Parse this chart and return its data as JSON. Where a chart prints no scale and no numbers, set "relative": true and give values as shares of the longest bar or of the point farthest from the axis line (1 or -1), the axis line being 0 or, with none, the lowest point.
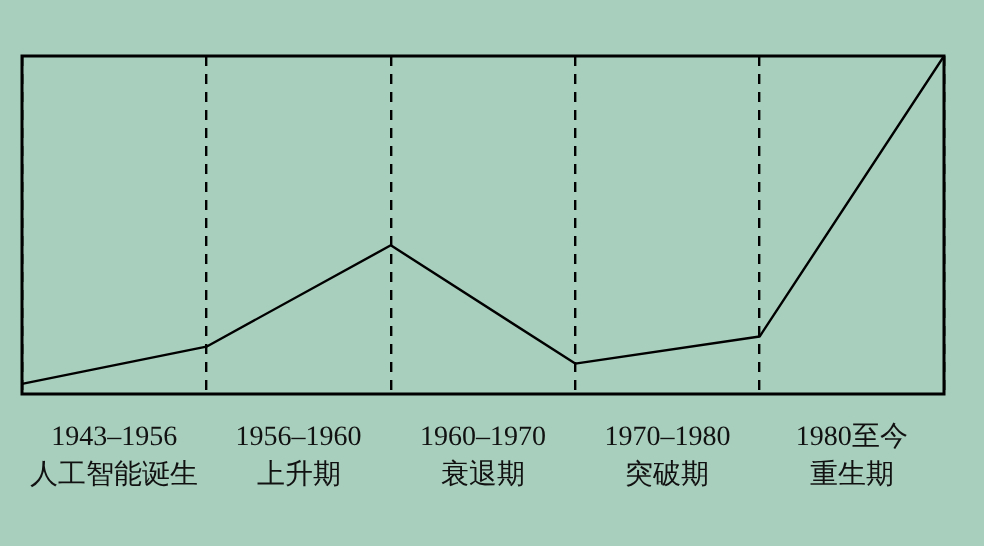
{
  "chart_data": {
    "type": "line",
    "relative": true,
    "tick_labels": false,
    "grid": "x",
    "legend": false,
    "marker": "none",
    "line_style": "solid",
    "categories": [
      null,
      null,
      null,
      null,
      null,
      null
    ],
    "series": [
      {
        "color": "#000000",
        "values": [
          0.03,
          0.14,
          0.44,
          0.09,
          0.17,
          1
        ]
      }
    ],
    "annotations": [
      "1943–1956",
      "人工智能诞生",
      "1956–1960",
      "上升期",
      "1960–1970",
      "衰退期",
      "1970–1980",
      "突破期",
      "1980至今",
      "重生期"
    ]
  }
}
